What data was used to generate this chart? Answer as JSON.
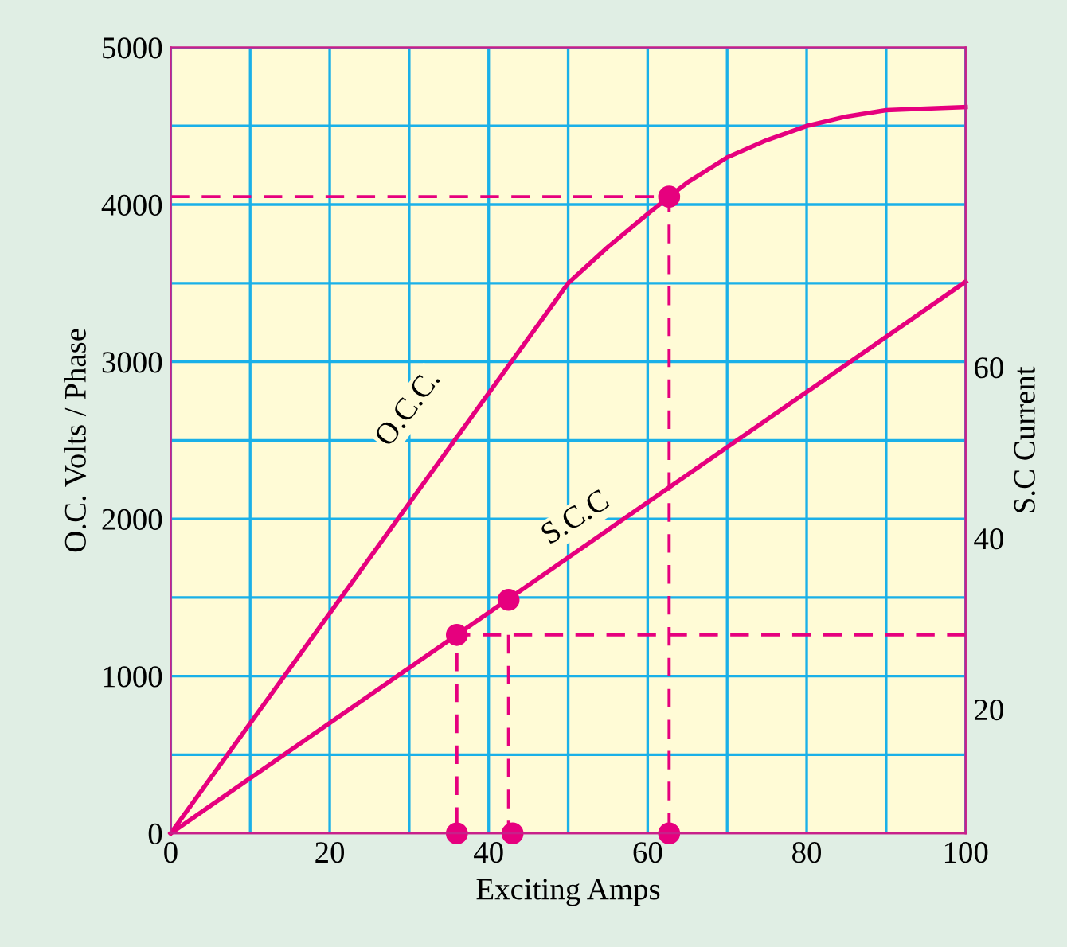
{
  "chart_data": {
    "type": "line",
    "xlabel": "Exciting Amps",
    "ylabel": "O.C. Volts / Phase",
    "y2label": "S.C Current",
    "xlim": [
      0,
      100
    ],
    "ylim": [
      0,
      5000
    ],
    "y2lim": [
      5.5,
      97.4
    ],
    "xticks": [
      0,
      {
        "value": 10,
        "label": null
      },
      20,
      {
        "value": 30,
        "label": null
      },
      40,
      {
        "value": 50,
        "label": null
      },
      60,
      {
        "value": 70,
        "label": null
      },
      80,
      {
        "value": 90,
        "label": null
      },
      100
    ],
    "yticks": [
      0,
      {
        "value": 500,
        "label": null
      },
      1000,
      {
        "value": 1500,
        "label": null
      },
      2000,
      {
        "value": 2500,
        "label": null
      },
      3000,
      {
        "value": 3500,
        "label": null
      },
      4000,
      {
        "value": 4500,
        "label": null
      },
      5000
    ],
    "y2ticks": [
      20,
      40,
      60
    ],
    "grid": true,
    "marker": "none",
    "line_style": "solid",
    "series": [
      {
        "color": "#e6007e",
        "x": [
          0,
          50,
          55,
          60,
          62.7,
          65,
          70,
          75,
          80,
          85,
          90,
          95,
          100
        ],
        "values": [
          0,
          3500,
          3730,
          3940,
          4050,
          4140,
          4300,
          4410,
          4500,
          4560,
          4600,
          4610,
          4620
        ]
      },
      {
        "color": "#e6007e",
        "axis": "y2",
        "x": [
          0,
          100
        ],
        "values": [
          5.5,
          70
        ]
      },
      {
        "color": "#e6007e",
        "line_style": "dashed",
        "x": [
          0,
          62.7,
          62.7
        ],
        "values": [
          4050,
          4050,
          0
        ]
      },
      {
        "color": "#e6007e",
        "line_style": "dashed",
        "axis": "y2",
        "x": [
          100,
          36,
          36
        ],
        "values": [
          28.7,
          28.7,
          5.5
        ]
      },
      {
        "color": "#e6007e",
        "line_style": "dashed",
        "axis": "y2",
        "x": [
          42.5,
          42.5
        ],
        "values": [
          28.7,
          5.5
        ]
      },
      {
        "type": "scatter",
        "color": "#e6007e",
        "marker": "circle",
        "x": [
          62.7,
          36,
          43,
          62.7
        ],
        "values": [
          4050,
          0,
          0,
          0
        ]
      },
      {
        "type": "scatter",
        "color": "#e6007e",
        "marker": "circle",
        "axis": "y2",
        "x": [
          36,
          42.5
        ],
        "values": [
          28.7,
          32.8
        ]
      }
    ],
    "annotations": [
      "O.C.C.",
      "S.C.C"
    ]
  }
}
